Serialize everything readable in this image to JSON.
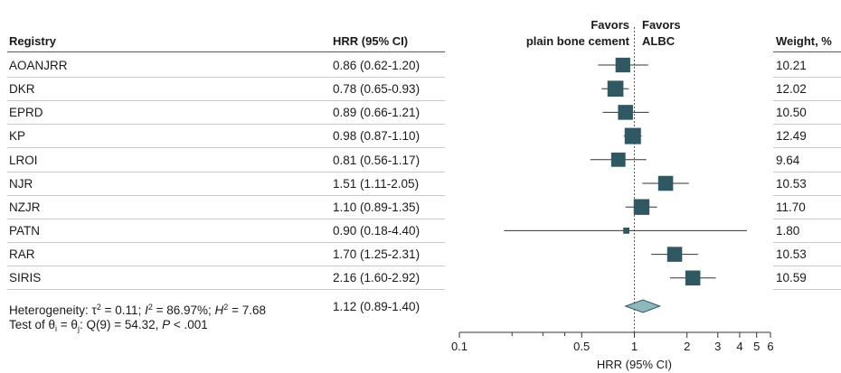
{
  "headers": {
    "registry": "Registry",
    "hrr": "HRR (95% CI)",
    "weight": "Weight, %",
    "favors_left_line1": "Favors",
    "favors_left_line2": "plain bone cement",
    "favors_right_line1": "Favors",
    "favors_right_line2": "ALBC"
  },
  "rows": [
    {
      "registry": "AOANJRR",
      "hrr_text": "0.86 (0.62-1.20)",
      "weight": "10.21"
    },
    {
      "registry": "DKR",
      "hrr_text": "0.78 (0.65-0.93)",
      "weight": "12.02"
    },
    {
      "registry": "EPRD",
      "hrr_text": "0.89 (0.66-1.21)",
      "weight": "10.50"
    },
    {
      "registry": "KP",
      "hrr_text": "0.98 (0.87-1.10)",
      "weight": "12.49"
    },
    {
      "registry": "LROI",
      "hrr_text": "0.81 (0.56-1.17)",
      "weight": "9.64"
    },
    {
      "registry": "NJR",
      "hrr_text": "1.51 (1.11-2.05)",
      "weight": "10.53"
    },
    {
      "registry": "NZJR",
      "hrr_text": "1.10 (0.89-1.35)",
      "weight": "11.70"
    },
    {
      "registry": "PATN",
      "hrr_text": "0.90 (0.18-4.40)",
      "weight": "1.80"
    },
    {
      "registry": "RAR",
      "hrr_text": "1.70 (1.25-2.31)",
      "weight": "10.53"
    },
    {
      "registry": "SIRIS",
      "hrr_text": "2.16 (1.60-2.92)",
      "weight": "10.59"
    }
  ],
  "overall": {
    "heterogeneity_prefix": "Heterogeneity: τ",
    "tau_sup": "2",
    "tau_value": " = 0.11; ",
    "i_label": "I",
    "i_sup": "2",
    "i_value": " = 86.97%; ",
    "h_label": "H",
    "h_sup": "2",
    "h_value": " = 7.68",
    "hrr_text": "1.12 (0.89-1.40)",
    "test_prefix": "Test of θ",
    "test_sub_i": "i",
    "test_eq": " = θ",
    "test_sub_j": "j",
    "test_q": ": Q(9) = 54.32, ",
    "p_label": "P",
    "p_value": " < .001"
  },
  "chart_data": {
    "type": "forest",
    "xscale": "log",
    "xlim": [
      0.1,
      6
    ],
    "xlabel": "HRR (95% CI)",
    "reference_line": 1,
    "ticks": [
      {
        "value": 0.1,
        "label": "0.1"
      },
      {
        "value": 0.2,
        "label": ""
      },
      {
        "value": 0.3,
        "label": ""
      },
      {
        "value": 0.4,
        "label": ""
      },
      {
        "value": 0.5,
        "label": "0.5"
      },
      {
        "value": 1,
        "label": "1"
      },
      {
        "value": 2,
        "label": "2"
      },
      {
        "value": 3,
        "label": "3"
      },
      {
        "value": 4,
        "label": "4"
      },
      {
        "value": 5,
        "label": "5"
      },
      {
        "value": 6,
        "label": "6"
      }
    ],
    "studies": [
      {
        "name": "AOANJRR",
        "hrr": 0.86,
        "lo": 0.62,
        "hi": 1.2,
        "weight": 10.21
      },
      {
        "name": "DKR",
        "hrr": 0.78,
        "lo": 0.65,
        "hi": 0.93,
        "weight": 12.02
      },
      {
        "name": "EPRD",
        "hrr": 0.89,
        "lo": 0.66,
        "hi": 1.21,
        "weight": 10.5
      },
      {
        "name": "KP",
        "hrr": 0.98,
        "lo": 0.87,
        "hi": 1.1,
        "weight": 12.49
      },
      {
        "name": "LROI",
        "hrr": 0.81,
        "lo": 0.56,
        "hi": 1.17,
        "weight": 9.64
      },
      {
        "name": "NJR",
        "hrr": 1.51,
        "lo": 1.11,
        "hi": 2.05,
        "weight": 10.53
      },
      {
        "name": "NZJR",
        "hrr": 1.1,
        "lo": 0.89,
        "hi": 1.35,
        "weight": 11.7
      },
      {
        "name": "PATN",
        "hrr": 0.9,
        "lo": 0.18,
        "hi": 4.4,
        "weight": 1.8
      },
      {
        "name": "RAR",
        "hrr": 1.7,
        "lo": 1.25,
        "hi": 2.31,
        "weight": 10.53
      },
      {
        "name": "SIRIS",
        "hrr": 2.16,
        "lo": 1.6,
        "hi": 2.92,
        "weight": 10.59
      }
    ],
    "pooled": {
      "hrr": 1.12,
      "lo": 0.89,
      "hi": 1.4
    },
    "colors": {
      "marker": "#2e5963",
      "diamond": "#8fb8bd",
      "diamond_stroke": "#2e5963",
      "ci_line": "#333333",
      "ref_line": "#555555"
    }
  }
}
